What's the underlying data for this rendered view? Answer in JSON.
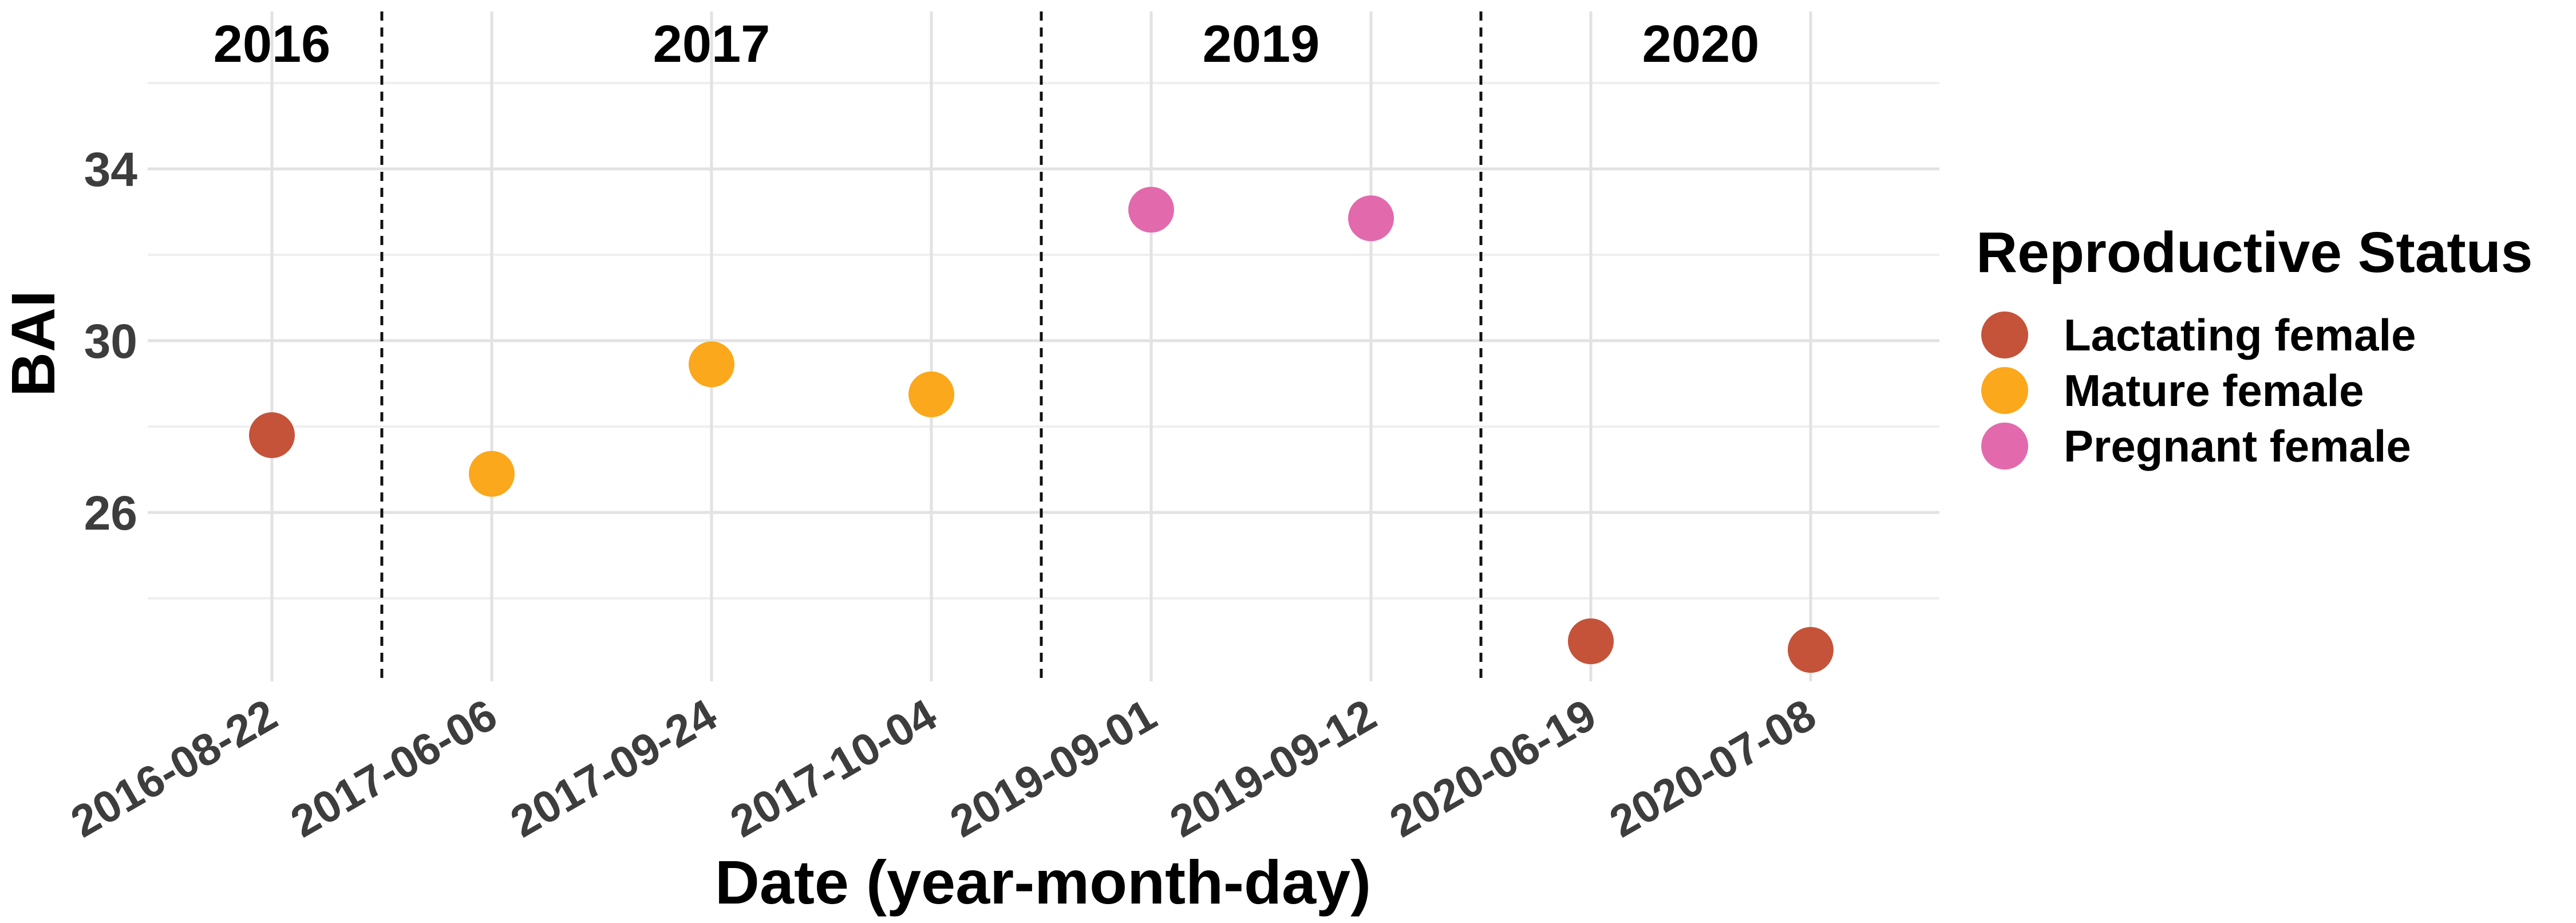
{
  "chart_data": {
    "type": "scatter",
    "xlabel": "Date (year-month-day)",
    "ylabel": "BAI",
    "categories": [
      "2016-08-22",
      "2017-06-06",
      "2017-09-24",
      "2017-10-04",
      "2019-09-01",
      "2019-09-12",
      "2020-06-19",
      "2020-07-08"
    ],
    "y_ticks": [
      26,
      30,
      34
    ],
    "ylim": [
      22,
      36
    ],
    "grid": true,
    "year_labels": [
      {
        "label": "2016",
        "from": 0,
        "to": 0
      },
      {
        "label": "2017",
        "from": 1,
        "to": 3
      },
      {
        "label": "2019",
        "from": 4,
        "to": 5
      },
      {
        "label": "2020",
        "from": 6,
        "to": 7
      }
    ],
    "year_dividers_after": [
      0,
      3,
      5
    ],
    "legend": {
      "title": "Reproductive Status",
      "position": "right",
      "items": [
        {
          "label": "Lactating female",
          "color": "#C4533A"
        },
        {
          "label": "Mature female",
          "color": "#FBA81C"
        },
        {
          "label": "Pregnant female",
          "color": "#E26AAC"
        }
      ]
    },
    "points": [
      {
        "x": "2016-08-22",
        "y": 27.8,
        "status": "Lactating female"
      },
      {
        "x": "2017-06-06",
        "y": 26.9,
        "status": "Mature female"
      },
      {
        "x": "2017-09-24",
        "y": 29.45,
        "status": "Mature female"
      },
      {
        "x": "2017-10-04",
        "y": 28.75,
        "status": "Mature female"
      },
      {
        "x": "2019-09-01",
        "y": 33.05,
        "status": "Pregnant female"
      },
      {
        "x": "2019-09-12",
        "y": 32.85,
        "status": "Pregnant female"
      },
      {
        "x": "2020-06-19",
        "y": 23.0,
        "status": "Lactating female"
      },
      {
        "x": "2020-07-08",
        "y": 22.8,
        "status": "Lactating female"
      }
    ]
  }
}
